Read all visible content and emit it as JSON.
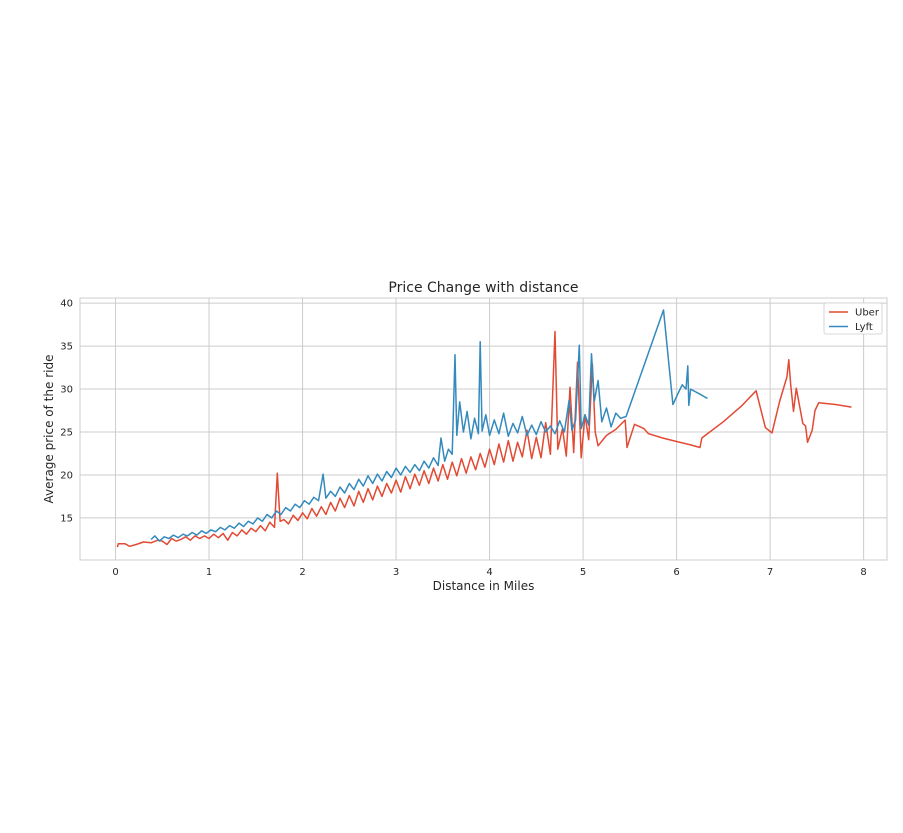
{
  "chart_data": {
    "type": "line",
    "title": "Price Change with distance",
    "xlabel": "Distance in Miles",
    "ylabel": "Average price of the ride",
    "xlim": [
      -0.38,
      8.25
    ],
    "ylim": [
      10.1,
      40.6
    ],
    "xticks": [
      0,
      1,
      2,
      3,
      4,
      5,
      6,
      7,
      8
    ],
    "yticks": [
      15,
      20,
      25,
      30,
      35,
      40
    ],
    "grid": true,
    "legend_position": "top-right",
    "series": [
      {
        "name": "Uber",
        "color": "#e24a33",
        "points": [
          [
            0.02,
            11.6
          ],
          [
            0.03,
            12.0
          ],
          [
            0.1,
            12.0
          ],
          [
            0.15,
            11.7
          ],
          [
            0.22,
            11.9
          ],
          [
            0.3,
            12.2
          ],
          [
            0.38,
            12.1
          ],
          [
            0.45,
            12.4
          ],
          [
            0.5,
            12.3
          ],
          [
            0.55,
            11.9
          ],
          [
            0.6,
            12.6
          ],
          [
            0.65,
            12.3
          ],
          [
            0.7,
            12.5
          ],
          [
            0.75,
            12.8
          ],
          [
            0.8,
            12.4
          ],
          [
            0.85,
            12.9
          ],
          [
            0.9,
            12.6
          ],
          [
            0.95,
            12.9
          ],
          [
            1.0,
            12.6
          ],
          [
            1.05,
            13.1
          ],
          [
            1.1,
            12.7
          ],
          [
            1.15,
            13.2
          ],
          [
            1.2,
            12.4
          ],
          [
            1.25,
            13.3
          ],
          [
            1.3,
            12.9
          ],
          [
            1.35,
            13.6
          ],
          [
            1.4,
            13.1
          ],
          [
            1.45,
            13.8
          ],
          [
            1.5,
            13.4
          ],
          [
            1.55,
            14.1
          ],
          [
            1.6,
            13.5
          ],
          [
            1.65,
            14.5
          ],
          [
            1.7,
            13.9
          ],
          [
            1.73,
            20.2
          ],
          [
            1.76,
            14.6
          ],
          [
            1.8,
            14.8
          ],
          [
            1.85,
            14.3
          ],
          [
            1.9,
            15.3
          ],
          [
            1.95,
            14.7
          ],
          [
            2.0,
            15.6
          ],
          [
            2.05,
            14.9
          ],
          [
            2.1,
            16.1
          ],
          [
            2.15,
            15.2
          ],
          [
            2.2,
            16.3
          ],
          [
            2.25,
            15.4
          ],
          [
            2.3,
            16.8
          ],
          [
            2.35,
            15.8
          ],
          [
            2.4,
            17.3
          ],
          [
            2.45,
            16.2
          ],
          [
            2.5,
            17.6
          ],
          [
            2.55,
            16.4
          ],
          [
            2.6,
            18.1
          ],
          [
            2.65,
            16.8
          ],
          [
            2.7,
            18.4
          ],
          [
            2.75,
            17.1
          ],
          [
            2.8,
            18.7
          ],
          [
            2.85,
            17.5
          ],
          [
            2.9,
            19.0
          ],
          [
            2.95,
            17.9
          ],
          [
            3.0,
            19.4
          ],
          [
            3.05,
            18.0
          ],
          [
            3.1,
            19.8
          ],
          [
            3.15,
            18.4
          ],
          [
            3.2,
            20.1
          ],
          [
            3.25,
            18.8
          ],
          [
            3.3,
            20.5
          ],
          [
            3.35,
            19.0
          ],
          [
            3.4,
            20.8
          ],
          [
            3.45,
            19.3
          ],
          [
            3.5,
            21.2
          ],
          [
            3.55,
            19.5
          ],
          [
            3.6,
            21.5
          ],
          [
            3.65,
            19.9
          ],
          [
            3.7,
            21.9
          ],
          [
            3.75,
            20.2
          ],
          [
            3.8,
            22.1
          ],
          [
            3.85,
            20.6
          ],
          [
            3.9,
            22.5
          ],
          [
            3.95,
            20.9
          ],
          [
            4.0,
            23.0
          ],
          [
            4.05,
            21.2
          ],
          [
            4.1,
            23.6
          ],
          [
            4.15,
            21.5
          ],
          [
            4.2,
            24.0
          ],
          [
            4.25,
            21.6
          ],
          [
            4.3,
            23.8
          ],
          [
            4.35,
            22.1
          ],
          [
            4.4,
            25.2
          ],
          [
            4.45,
            21.9
          ],
          [
            4.5,
            24.4
          ],
          [
            4.55,
            22.0
          ],
          [
            4.6,
            26.1
          ],
          [
            4.65,
            22.4
          ],
          [
            4.7,
            36.7
          ],
          [
            4.73,
            23.0
          ],
          [
            4.78,
            25.4
          ],
          [
            4.82,
            22.2
          ],
          [
            4.86,
            30.2
          ],
          [
            4.9,
            22.6
          ],
          [
            4.94,
            33.1
          ],
          [
            4.98,
            22.0
          ],
          [
            5.02,
            27.0
          ],
          [
            5.06,
            24.1
          ],
          [
            5.1,
            32.9
          ],
          [
            5.13,
            25.0
          ],
          [
            5.16,
            23.4
          ],
          [
            5.25,
            24.6
          ],
          [
            5.35,
            25.3
          ],
          [
            5.45,
            26.4
          ],
          [
            5.47,
            23.2
          ],
          [
            5.55,
            25.9
          ],
          [
            5.65,
            25.4
          ],
          [
            5.7,
            24.8
          ],
          [
            5.85,
            24.3
          ],
          [
            6.0,
            23.9
          ],
          [
            6.15,
            23.5
          ],
          [
            6.25,
            23.2
          ],
          [
            6.27,
            24.3
          ],
          [
            6.5,
            26.2
          ],
          [
            6.7,
            28.1
          ],
          [
            6.85,
            29.8
          ],
          [
            6.95,
            25.5
          ],
          [
            7.02,
            24.9
          ],
          [
            7.1,
            28.5
          ],
          [
            7.18,
            31.4
          ],
          [
            7.2,
            33.4
          ],
          [
            7.22,
            30.5
          ],
          [
            7.25,
            27.4
          ],
          [
            7.28,
            30.1
          ],
          [
            7.35,
            26.0
          ],
          [
            7.38,
            25.7
          ],
          [
            7.4,
            23.8
          ],
          [
            7.45,
            25.2
          ],
          [
            7.48,
            27.5
          ],
          [
            7.52,
            28.4
          ],
          [
            7.7,
            28.2
          ],
          [
            7.87,
            27.9
          ]
        ]
      },
      {
        "name": "Lyft",
        "color": "#348abd",
        "points": [
          [
            0.38,
            12.5
          ],
          [
            0.42,
            12.9
          ],
          [
            0.47,
            12.3
          ],
          [
            0.52,
            12.8
          ],
          [
            0.57,
            12.6
          ],
          [
            0.62,
            13.0
          ],
          [
            0.67,
            12.7
          ],
          [
            0.72,
            13.1
          ],
          [
            0.77,
            12.9
          ],
          [
            0.82,
            13.3
          ],
          [
            0.87,
            13.0
          ],
          [
            0.92,
            13.5
          ],
          [
            0.97,
            13.2
          ],
          [
            1.02,
            13.6
          ],
          [
            1.07,
            13.4
          ],
          [
            1.12,
            13.9
          ],
          [
            1.17,
            13.6
          ],
          [
            1.22,
            14.1
          ],
          [
            1.27,
            13.8
          ],
          [
            1.32,
            14.4
          ],
          [
            1.37,
            14.0
          ],
          [
            1.42,
            14.6
          ],
          [
            1.47,
            14.3
          ],
          [
            1.52,
            15.0
          ],
          [
            1.57,
            14.6
          ],
          [
            1.62,
            15.4
          ],
          [
            1.67,
            15.0
          ],
          [
            1.72,
            15.8
          ],
          [
            1.77,
            15.4
          ],
          [
            1.82,
            16.2
          ],
          [
            1.87,
            15.8
          ],
          [
            1.92,
            16.6
          ],
          [
            1.97,
            16.2
          ],
          [
            2.02,
            17.0
          ],
          [
            2.07,
            16.6
          ],
          [
            2.12,
            17.4
          ],
          [
            2.17,
            17.0
          ],
          [
            2.22,
            20.1
          ],
          [
            2.25,
            17.3
          ],
          [
            2.3,
            18.1
          ],
          [
            2.35,
            17.5
          ],
          [
            2.4,
            18.6
          ],
          [
            2.45,
            17.9
          ],
          [
            2.5,
            19.0
          ],
          [
            2.55,
            18.3
          ],
          [
            2.6,
            19.5
          ],
          [
            2.65,
            18.7
          ],
          [
            2.7,
            19.9
          ],
          [
            2.75,
            19.0
          ],
          [
            2.8,
            20.1
          ],
          [
            2.85,
            19.3
          ],
          [
            2.9,
            20.4
          ],
          [
            2.95,
            19.7
          ],
          [
            3.0,
            20.8
          ],
          [
            3.05,
            20.0
          ],
          [
            3.1,
            21.0
          ],
          [
            3.15,
            20.3
          ],
          [
            3.2,
            21.2
          ],
          [
            3.25,
            20.5
          ],
          [
            3.3,
            21.6
          ],
          [
            3.35,
            20.8
          ],
          [
            3.4,
            22.0
          ],
          [
            3.45,
            21.1
          ],
          [
            3.48,
            24.3
          ],
          [
            3.52,
            21.6
          ],
          [
            3.56,
            23.0
          ],
          [
            3.6,
            22.4
          ],
          [
            3.63,
            34.0
          ],
          [
            3.65,
            24.6
          ],
          [
            3.68,
            28.5
          ],
          [
            3.72,
            25.0
          ],
          [
            3.76,
            27.4
          ],
          [
            3.8,
            24.2
          ],
          [
            3.84,
            26.6
          ],
          [
            3.88,
            24.8
          ],
          [
            3.9,
            35.5
          ],
          [
            3.92,
            25.1
          ],
          [
            3.96,
            27.0
          ],
          [
            4.0,
            24.6
          ],
          [
            4.05,
            26.4
          ],
          [
            4.1,
            24.8
          ],
          [
            4.15,
            27.2
          ],
          [
            4.2,
            24.5
          ],
          [
            4.25,
            26.0
          ],
          [
            4.3,
            24.9
          ],
          [
            4.35,
            26.8
          ],
          [
            4.4,
            24.6
          ],
          [
            4.45,
            25.8
          ],
          [
            4.5,
            24.7
          ],
          [
            4.55,
            26.2
          ],
          [
            4.6,
            25.0
          ],
          [
            4.65,
            25.7
          ],
          [
            4.7,
            24.8
          ],
          [
            4.75,
            26.3
          ],
          [
            4.8,
            25.0
          ],
          [
            4.85,
            28.7
          ],
          [
            4.88,
            25.2
          ],
          [
            4.92,
            26.4
          ],
          [
            4.96,
            35.1
          ],
          [
            4.98,
            25.4
          ],
          [
            5.02,
            27.0
          ],
          [
            5.06,
            25.8
          ],
          [
            5.09,
            34.1
          ],
          [
            5.12,
            28.6
          ],
          [
            5.16,
            31.0
          ],
          [
            5.2,
            26.2
          ],
          [
            5.25,
            27.8
          ],
          [
            5.3,
            25.6
          ],
          [
            5.35,
            27.2
          ],
          [
            5.4,
            26.6
          ],
          [
            5.46,
            26.8
          ],
          [
            5.86,
            39.2
          ],
          [
            5.96,
            28.2
          ],
          [
            6.02,
            29.6
          ],
          [
            6.06,
            30.5
          ],
          [
            6.1,
            30.0
          ],
          [
            6.12,
            32.7
          ],
          [
            6.13,
            28.1
          ],
          [
            6.15,
            30.0
          ],
          [
            6.25,
            29.4
          ],
          [
            6.33,
            28.9
          ]
        ]
      }
    ]
  }
}
